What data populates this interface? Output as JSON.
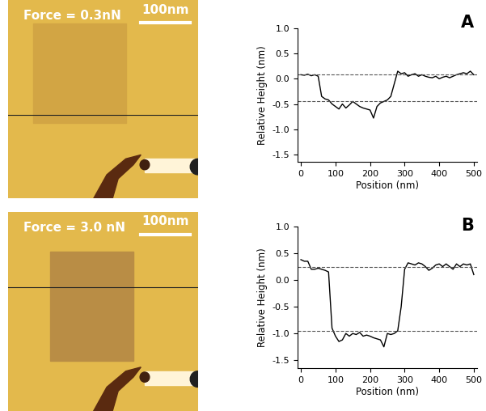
{
  "images": [
    {
      "force_label": "Force = 0.3nN",
      "scale_bar": "100nm"
    },
    {
      "force_label": "Force = 3.0 nN",
      "scale_bar": "100nm"
    }
  ],
  "chart_data": [
    {
      "type": "line",
      "panel": "A",
      "x_label": "Position (nm)",
      "y_label": "Relative Height (nm)",
      "x": [
        0,
        10,
        20,
        30,
        40,
        50,
        60,
        70,
        80,
        90,
        100,
        110,
        120,
        130,
        140,
        150,
        160,
        170,
        180,
        190,
        200,
        210,
        220,
        230,
        240,
        250,
        260,
        270,
        280,
        290,
        300,
        310,
        320,
        330,
        340,
        350,
        360,
        370,
        380,
        390,
        400,
        410,
        420,
        430,
        440,
        450,
        460,
        470,
        480,
        490,
        500
      ],
      "values": [
        0.08,
        0.07,
        0.09,
        0.06,
        0.08,
        0.05,
        -0.35,
        -0.4,
        -0.42,
        -0.5,
        -0.55,
        -0.6,
        -0.5,
        -0.58,
        -0.52,
        -0.45,
        -0.5,
        -0.55,
        -0.58,
        -0.6,
        -0.62,
        -0.78,
        -0.55,
        -0.48,
        -0.45,
        -0.42,
        -0.35,
        -0.1,
        0.15,
        0.1,
        0.12,
        0.05,
        0.08,
        0.1,
        0.05,
        0.08,
        0.05,
        0.03,
        0.02,
        0.05,
        0.0,
        0.03,
        0.05,
        0.02,
        0.05,
        0.08,
        0.1,
        0.12,
        0.1,
        0.15,
        0.08
      ],
      "color": "#000000",
      "reference_lines": [
        0.08,
        -0.45
      ],
      "xlim": [
        -10,
        510
      ],
      "ylim": [
        -1.65,
        1.0
      ],
      "xticks": [
        0,
        100,
        200,
        300,
        400,
        500
      ],
      "yticks": [
        -1.5,
        -1.0,
        -0.5,
        0.0,
        0.5,
        1.0
      ]
    },
    {
      "type": "line",
      "panel": "B",
      "x_label": "Position (nm)",
      "y_label": "Relative Height (nm)",
      "x": [
        0,
        10,
        20,
        30,
        40,
        50,
        60,
        70,
        80,
        90,
        100,
        110,
        120,
        130,
        140,
        150,
        160,
        170,
        180,
        190,
        200,
        210,
        220,
        230,
        240,
        250,
        260,
        270,
        280,
        290,
        300,
        310,
        320,
        330,
        340,
        350,
        360,
        370,
        380,
        390,
        400,
        410,
        420,
        430,
        440,
        450,
        460,
        470,
        480,
        490,
        500
      ],
      "values": [
        0.38,
        0.35,
        0.35,
        0.2,
        0.2,
        0.22,
        0.2,
        0.18,
        0.15,
        -0.9,
        -1.05,
        -1.15,
        -1.12,
        -1.0,
        -1.05,
        -1.0,
        -1.02,
        -0.98,
        -1.05,
        -1.03,
        -1.05,
        -1.08,
        -1.1,
        -1.12,
        -1.25,
        -1.0,
        -1.02,
        -1.0,
        -0.95,
        -0.5,
        0.2,
        0.32,
        0.3,
        0.28,
        0.32,
        0.3,
        0.25,
        0.18,
        0.22,
        0.28,
        0.3,
        0.25,
        0.3,
        0.25,
        0.2,
        0.3,
        0.25,
        0.3,
        0.28,
        0.3,
        0.1
      ],
      "color": "#000000",
      "reference_lines": [
        0.25,
        -0.95
      ],
      "xlim": [
        -10,
        510
      ],
      "ylim": [
        -1.65,
        1.0
      ],
      "xticks": [
        0,
        100,
        200,
        300,
        400,
        500
      ],
      "yticks": [
        -1.5,
        -1.0,
        -0.5,
        0.0,
        0.5,
        1.0
      ]
    }
  ]
}
